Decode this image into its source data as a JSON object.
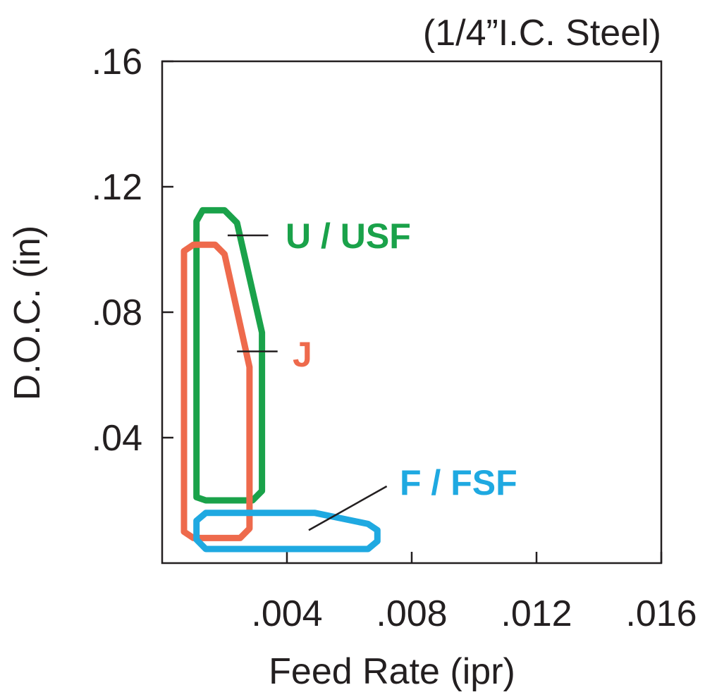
{
  "chart_data": {
    "type": "area",
    "title": "",
    "subtitle": "(1/4”I.C. Steel)",
    "xlabel": "Feed Rate (ipr)",
    "ylabel": "D.O.C. (in)",
    "xlim": [
      0,
      0.016
    ],
    "ylim": [
      0,
      0.16
    ],
    "x_ticks": [
      0.004,
      0.008,
      0.012,
      0.016
    ],
    "x_tick_labels": [
      ".004",
      ".008",
      ".012",
      ".016"
    ],
    "y_ticks": [
      0.04,
      0.08,
      0.12,
      0.16
    ],
    "y_tick_labels": [
      ".04",
      ".08",
      ".12",
      ".16"
    ],
    "grid": false,
    "colors": {
      "axis": "#231f20",
      "green": "#1aa24a",
      "orange": "#ee6a4c",
      "blue": "#1fa9e1"
    },
    "series": [
      {
        "name": "U / USF",
        "color": "#1aa24a",
        "polygon": [
          [
            0.0011,
            0.021
          ],
          [
            0.0011,
            0.109
          ],
          [
            0.0013,
            0.1125
          ],
          [
            0.002,
            0.1125
          ],
          [
            0.0024,
            0.1085
          ],
          [
            0.0032,
            0.0735
          ],
          [
            0.0032,
            0.023
          ],
          [
            0.0029,
            0.02
          ],
          [
            0.0014,
            0.02
          ]
        ],
        "leader": [
          [
            0.0021,
            0.1045
          ],
          [
            0.0034,
            0.1045
          ]
        ]
      },
      {
        "name": "J",
        "color": "#ee6a4c",
        "polygon": [
          [
            0.0007,
            0.01
          ],
          [
            0.0007,
            0.0995
          ],
          [
            0.001,
            0.1015
          ],
          [
            0.0017,
            0.1015
          ],
          [
            0.002,
            0.0985
          ],
          [
            0.0028,
            0.0625
          ],
          [
            0.0028,
            0.011
          ],
          [
            0.0025,
            0.008
          ],
          [
            0.001,
            0.008
          ]
        ],
        "leader": [
          [
            0.0024,
            0.0675
          ],
          [
            0.0037,
            0.0675
          ]
        ]
      },
      {
        "name": "F / FSF",
        "color": "#1fa9e1",
        "polygon": [
          [
            0.0011,
            0.0075
          ],
          [
            0.0011,
            0.0135
          ],
          [
            0.0014,
            0.016
          ],
          [
            0.0049,
            0.016
          ],
          [
            0.0066,
            0.0125
          ],
          [
            0.0069,
            0.0105
          ],
          [
            0.0069,
            0.007
          ],
          [
            0.0066,
            0.0045
          ],
          [
            0.0014,
            0.0045
          ]
        ],
        "leader": [
          [
            0.0047,
            0.0105
          ],
          [
            0.0072,
            0.0245
          ]
        ]
      }
    ],
    "labels": [
      {
        "text": "U / USF",
        "color": "#1aa24a"
      },
      {
        "text": "J",
        "color": "#ee6a4c"
      },
      {
        "text": "F / FSF",
        "color": "#1fa9e1"
      }
    ]
  }
}
